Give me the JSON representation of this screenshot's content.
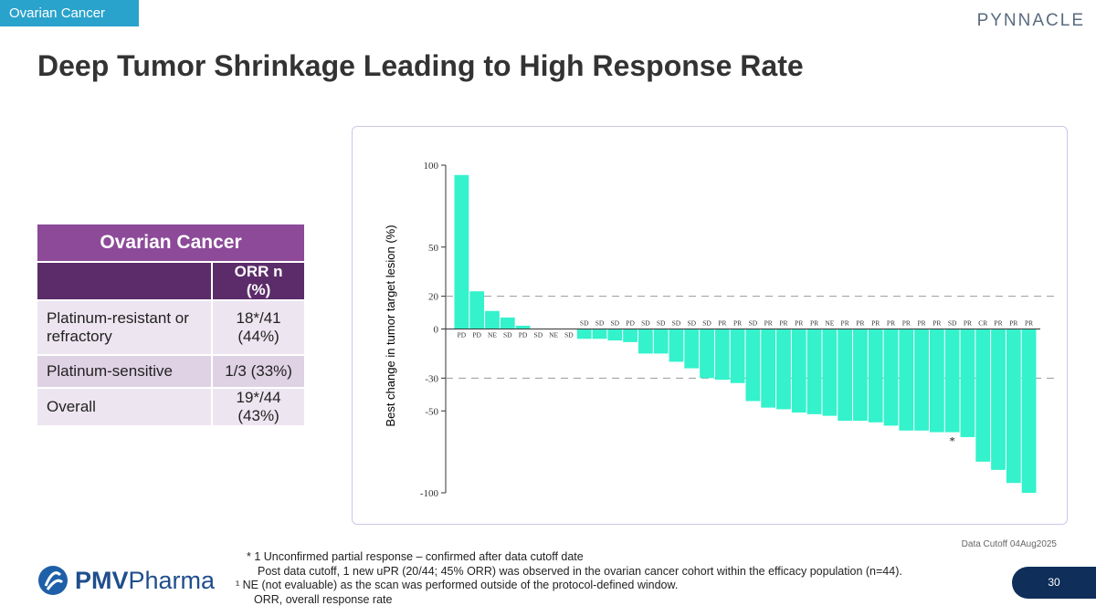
{
  "section_tag": "Ovarian Cancer",
  "brand": "PYNNACLE",
  "title": "Deep Tumor Shrinkage Leading to High Response Rate",
  "table": {
    "title": "Ovarian Cancer",
    "header": "ORR n (%)",
    "rows": [
      [
        "Platinum-resistant or refractory",
        "18*/41 (44%)"
      ],
      [
        "Platinum-sensitive",
        "1/3 (33%)"
      ],
      [
        "Overall",
        "19*/44 (43%)"
      ]
    ]
  },
  "chart_data": {
    "type": "bar",
    "ylabel": "Best change in tumor target lesion (%)",
    "categories": [
      "PD",
      "PD",
      "NE",
      "SD",
      "PD",
      "SD",
      "NE",
      "SD",
      "SD",
      "SD",
      "SD",
      "PD",
      "SD",
      "SD",
      "SD",
      "SD",
      "SD",
      "PR",
      "PR",
      "SD",
      "PR",
      "PR",
      "PR",
      "PR",
      "NE",
      "PR",
      "PR",
      "PR",
      "PR",
      "PR",
      "PR",
      "PR",
      "SD",
      "PR",
      "CR",
      "PR",
      "PR",
      "PR"
    ],
    "values": [
      94,
      23,
      11,
      7,
      2,
      0,
      0,
      0,
      -6,
      -6,
      -7,
      -8,
      -15,
      -15,
      -20,
      -24,
      -30,
      -31,
      -33,
      -44,
      -48,
      -49,
      -51,
      -52,
      -53,
      -56,
      -56,
      -57,
      -59,
      -62,
      -62,
      -63,
      -63,
      -66,
      -81,
      -86,
      -94,
      -100
    ],
    "color": "#33f2cc",
    "ylim": [
      -100,
      100
    ],
    "yticks": [
      100,
      50,
      20,
      0,
      -30,
      -50,
      -100
    ],
    "reference_lines": [
      20,
      -30
    ],
    "annotation": {
      "text": "*",
      "index": 32
    }
  },
  "data_cutoff": "Data Cutoff 04Aug2025",
  "footnotes": [
    "* 1 Unconfirmed partial response – confirmed after data cutoff date",
    "Post data cutoff, 1 new uPR (20/44; 45% ORR) was observed in the ovarian cancer cohort within the efficacy population (n=44).",
    "¹ NE (not evaluable) as the scan was performed outside of the protocol-defined window.",
    "ORR, overall response rate"
  ],
  "logo": {
    "bold": "PMV",
    "rest": "Pharma"
  },
  "page_number": "30"
}
